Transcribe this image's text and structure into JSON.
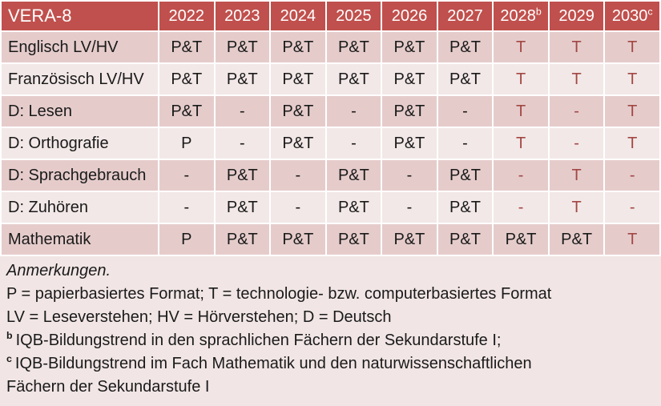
{
  "colors": {
    "header_bg": "#C0504D",
    "header_text": "#FFFFFF",
    "band_dark": "#E5CCCB",
    "band_light": "#F2E8E7",
    "notes_bg": "#F1E6E5",
    "value_red": "#A24744",
    "text": "#1A1A1A"
  },
  "table": {
    "title": "VERA-8",
    "columns": [
      {
        "label": "2022",
        "sup": ""
      },
      {
        "label": "2023",
        "sup": ""
      },
      {
        "label": "2024",
        "sup": ""
      },
      {
        "label": "2025",
        "sup": ""
      },
      {
        "label": "2026",
        "sup": ""
      },
      {
        "label": "2027",
        "sup": ""
      },
      {
        "label": "2028",
        "sup": "b"
      },
      {
        "label": "2029",
        "sup": ""
      },
      {
        "label": "2030",
        "sup": "c"
      }
    ],
    "rows": [
      {
        "label": "Englisch LV/HV",
        "values": [
          "P&T",
          "P&T",
          "P&T",
          "P&T",
          "P&T",
          "P&T",
          "T",
          "T",
          "T"
        ],
        "red_start": 6
      },
      {
        "label": "Französisch LV/HV",
        "values": [
          "P&T",
          "P&T",
          "P&T",
          "P&T",
          "P&T",
          "P&T",
          "T",
          "T",
          "T"
        ],
        "red_start": 6
      },
      {
        "label": "D: Lesen",
        "values": [
          "P&T",
          "-",
          "P&T",
          "-",
          "P&T",
          "-",
          "T",
          "-",
          "T"
        ],
        "red_start": 6
      },
      {
        "label": "D: Orthografie",
        "values": [
          "P",
          "-",
          "P&T",
          "-",
          "P&T",
          "-",
          "T",
          "-",
          "T"
        ],
        "red_start": 6
      },
      {
        "label": "D: Sprachgebrauch",
        "values": [
          "-",
          "P&T",
          "-",
          "P&T",
          "-",
          "P&T",
          "-",
          "T",
          "-"
        ],
        "red_start": 6
      },
      {
        "label": "D: Zuhören",
        "values": [
          "-",
          "P&T",
          "-",
          "P&T",
          "-",
          "P&T",
          "-",
          "T",
          "-"
        ],
        "red_start": 6
      },
      {
        "label": "Mathematik",
        "values": [
          "P",
          "P&T",
          "P&T",
          "P&T",
          "P&T",
          "P&T",
          "P&T",
          "P&T",
          "T"
        ],
        "red_start": 8
      }
    ]
  },
  "notes": {
    "heading": "Anmerkungen.",
    "formats": "P = papierbasiertes Format; T = technologie- bzw. computerbasiertes Format",
    "abbreviations": "LV = Leseverstehen; HV = Hörverstehen; D = Deutsch",
    "note_b_sup": "b",
    "note_b_text": "IQB-Bildungstrend in den sprachlichen Fächern der Sekundarstufe I;",
    "note_c_sup": "c",
    "note_c_line1": "IQB-Bildungstrend im Fach Mathematik und den naturwissenschaftlichen",
    "note_c_line2": "Fächern der Sekundarstufe I"
  }
}
